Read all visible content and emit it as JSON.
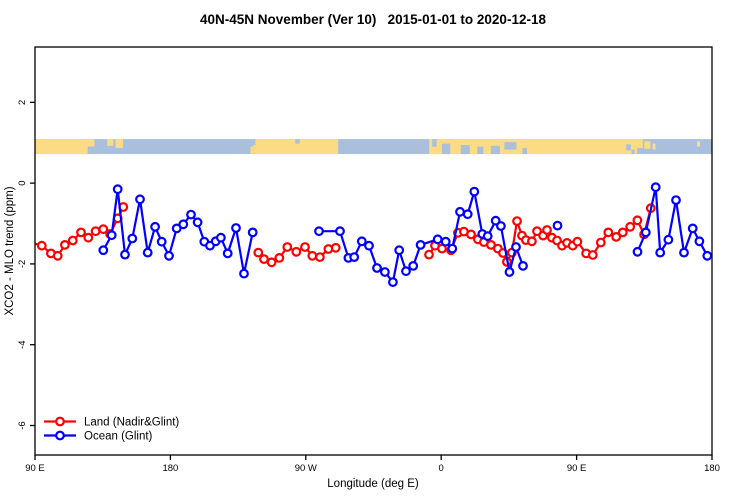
{
  "chart_data": {
    "type": "line",
    "title": "40N-45N November (Ver 10)   2015-01-01 to 2020-12-18",
    "xlabel": "Longitude (deg E)",
    "ylabel": "XCO2 - MLO trend (ppm)",
    "xlim": [
      90,
      540
    ],
    "ylim": [
      -6.73,
      3.37
    ],
    "grid": false,
    "x_ticks": [
      {
        "lon": 90,
        "label": "90 E"
      },
      {
        "lon": 180,
        "label": "180"
      },
      {
        "lon": 270,
        "label": "90 W"
      },
      {
        "lon": 360,
        "label": "0"
      },
      {
        "lon": 450,
        "label": "90 E"
      },
      {
        "lon": 540,
        "label": "180"
      }
    ],
    "y_ticks": [
      {
        "value": 2,
        "label": "2"
      },
      {
        "value": 0,
        "label": "0"
      },
      {
        "value": -2,
        "label": "-2"
      },
      {
        "value": -4,
        "label": "-4"
      },
      {
        "value": -6,
        "label": "-6"
      }
    ],
    "legend": {
      "position": "bottom-left",
      "items": [
        {
          "label": "Land (Nadir&Glint)",
          "color": "#ff0000"
        },
        {
          "label": "Ocean (Glint)",
          "color": "#0000ff"
        }
      ]
    },
    "map_strip": {
      "description": "land-ocean mask band for 40N-45N",
      "land_color": "#fbdb84",
      "ocean_color": "#a9bfdc",
      "y_top": 1.09,
      "y_bottom": 0.72,
      "land_segments": [
        [
          90,
          129.5
        ],
        [
          235,
          291.5
        ],
        [
          352,
          490.2
        ]
      ],
      "land_patches": [
        [
          138,
          142,
          0,
          0.45
        ],
        [
          143.5,
          148.5,
          0,
          0.6
        ],
        [
          233.2,
          235,
          0.5,
          0.5
        ],
        [
          490.2,
          494,
          0,
          0.6
        ],
        [
          495,
          499,
          0.15,
          0.5
        ],
        [
          500.5,
          502.5,
          0.3,
          0.4
        ],
        [
          530,
          532,
          0.15,
          0.35
        ]
      ],
      "ocean_patches": [
        [
          125,
          129.5,
          0.5,
          0.5
        ],
        [
          235,
          236.5,
          0,
          0.4
        ],
        [
          263,
          266,
          0,
          0.3
        ],
        [
          354,
          357,
          0,
          0.5
        ],
        [
          360.5,
          366,
          0.3,
          0.7
        ],
        [
          373,
          379,
          0.4,
          0.6
        ],
        [
          384,
          388,
          0.5,
          0.5
        ],
        [
          393,
          399,
          0.45,
          0.55
        ],
        [
          402,
          410,
          0.2,
          0.5
        ],
        [
          414,
          417,
          0.6,
          0.4
        ],
        [
          483,
          486,
          0.35,
          0.4
        ],
        [
          486.5,
          488.5,
          0.7,
          0.3
        ]
      ]
    },
    "series": [
      {
        "name": "Land (Nadir&Glint)",
        "color": "#ff0000",
        "marker": "open-circle",
        "segments": [
          {
            "stub_start": true,
            "points": [
              [
                90,
                -1.5
              ],
              [
                94.5,
                -1.55
              ],
              [
                100.6,
                -1.74
              ],
              [
                105.1,
                -1.8
              ],
              [
                109.9,
                -1.53
              ],
              [
                115.1,
                -1.42
              ],
              [
                120.6,
                -1.22
              ],
              [
                125.4,
                -1.35
              ],
              [
                130.3,
                -1.19
              ],
              [
                135.4,
                -1.14
              ],
              [
                139.9,
                -1.26
              ],
              [
                145.0,
                -0.87
              ],
              [
                148.7,
                -0.59
              ]
            ]
          },
          {
            "points": [
              [
                238.4,
                -1.72
              ],
              [
                242.2,
                -1.88
              ],
              [
                247.3,
                -1.96
              ],
              [
                252.4,
                -1.85
              ],
              [
                257.7,
                -1.58
              ],
              [
                263.7,
                -1.7
              ],
              [
                269.5,
                -1.58
              ],
              [
                274.3,
                -1.8
              ],
              [
                279.4,
                -1.83
              ],
              [
                285.0,
                -1.63
              ],
              [
                289.9,
                -1.6
              ]
            ]
          },
          {
            "points": [
              [
                351.9,
                -1.77
              ],
              [
                355.9,
                -1.55
              ],
              [
                360.5,
                -1.62
              ],
              [
                366.5,
                -1.66
              ],
              [
                371.1,
                -1.23
              ],
              [
                375.1,
                -1.2
              ],
              [
                379.8,
                -1.27
              ],
              [
                384.4,
                -1.39
              ],
              [
                388.4,
                -1.46
              ],
              [
                393.1,
                -1.53
              ],
              [
                397.7,
                -1.62
              ],
              [
                401.1,
                -1.73
              ],
              [
                403.7,
                -1.95
              ],
              [
                407.0,
                -1.72
              ],
              [
                410.4,
                -0.94
              ],
              [
                413.7,
                -1.3
              ],
              [
                416.3,
                -1.41
              ],
              [
                420.3,
                -1.44
              ],
              [
                423.7,
                -1.19
              ],
              [
                427.7,
                -1.3
              ],
              [
                430.3,
                -1.16
              ],
              [
                433.6,
                -1.35
              ],
              [
                437.0,
                -1.42
              ],
              [
                440.3,
                -1.55
              ],
              [
                443.6,
                -1.48
              ],
              [
                447.4,
                -1.55
              ],
              [
                450.5,
                -1.45
              ],
              [
                456.3,
                -1.74
              ],
              [
                460.8,
                -1.78
              ],
              [
                466.1,
                -1.47
              ],
              [
                471.1,
                -1.22
              ],
              [
                476.3,
                -1.33
              ],
              [
                480.7,
                -1.22
              ],
              [
                485.6,
                -1.08
              ],
              [
                490.4,
                -0.92
              ],
              [
                494.9,
                -1.27
              ],
              [
                499.3,
                -0.62
              ]
            ]
          }
        ]
      },
      {
        "name": "Ocean (Glint)",
        "color": "#0000ff",
        "marker": "open-circle",
        "segments": [
          {
            "points": [
              [
                135.4,
                -1.66
              ],
              [
                141.0,
                -1.29
              ],
              [
                145.0,
                -0.15
              ],
              [
                149.8,
                -1.77
              ],
              [
                154.7,
                -1.37
              ],
              [
                159.8,
                -0.4
              ],
              [
                164.9,
                -1.72
              ],
              [
                169.8,
                -1.08
              ],
              [
                174.2,
                -1.45
              ],
              [
                179.1,
                -1.8
              ],
              [
                184.2,
                -1.12
              ],
              [
                188.6,
                -1.02
              ],
              [
                193.7,
                -0.78
              ],
              [
                198.1,
                -0.97
              ],
              [
                202.5,
                -1.45
              ],
              [
                206.3,
                -1.55
              ],
              [
                210.1,
                -1.44
              ],
              [
                213.6,
                -1.35
              ],
              [
                218.1,
                -1.74
              ],
              [
                223.6,
                -1.11
              ],
              [
                228.9,
                -2.24
              ],
              [
                234.7,
                -1.22
              ]
            ]
          },
          {
            "points": [
              [
                278.8,
                -1.19
              ],
              [
                292.7,
                -1.19
              ],
              [
                298.3,
                -1.85
              ],
              [
                302.2,
                -1.83
              ],
              [
                307.2,
                -1.44
              ],
              [
                312.0,
                -1.55
              ],
              [
                317.3,
                -2.1
              ],
              [
                322.6,
                -2.2
              ],
              [
                327.9,
                -2.45
              ],
              [
                332.1,
                -1.66
              ],
              [
                336.6,
                -2.18
              ],
              [
                341.4,
                -2.05
              ],
              [
                346.3,
                -1.53
              ],
              [
                357.7,
                -1.39
              ],
              [
                363.0,
                -1.45
              ],
              [
                367.4,
                -1.62
              ],
              [
                372.5,
                -0.71
              ],
              [
                377.6,
                -0.77
              ],
              [
                382.0,
                -0.21
              ],
              [
                387.3,
                -1.26
              ],
              [
                390.9,
                -1.31
              ],
              [
                396.2,
                -0.93
              ],
              [
                399.7,
                -1.06
              ],
              [
                405.4,
                -2.2
              ],
              [
                409.7,
                -1.58
              ],
              [
                414.4,
                -2.05
              ]
            ]
          },
          {
            "points": [
              [
                437.3,
                -1.05
              ]
            ]
          },
          {
            "points": [
              [
                490.5,
                -1.7
              ],
              [
                496.0,
                -1.22
              ],
              [
                502.6,
                -0.1
              ],
              [
                505.6,
                -1.72
              ],
              [
                511.0,
                -1.4
              ],
              [
                516.1,
                -0.42
              ],
              [
                521.4,
                -1.72
              ],
              [
                527.2,
                -1.12
              ],
              [
                531.6,
                -1.44
              ],
              [
                536.9,
                -1.8
              ]
            ]
          }
        ]
      }
    ]
  }
}
